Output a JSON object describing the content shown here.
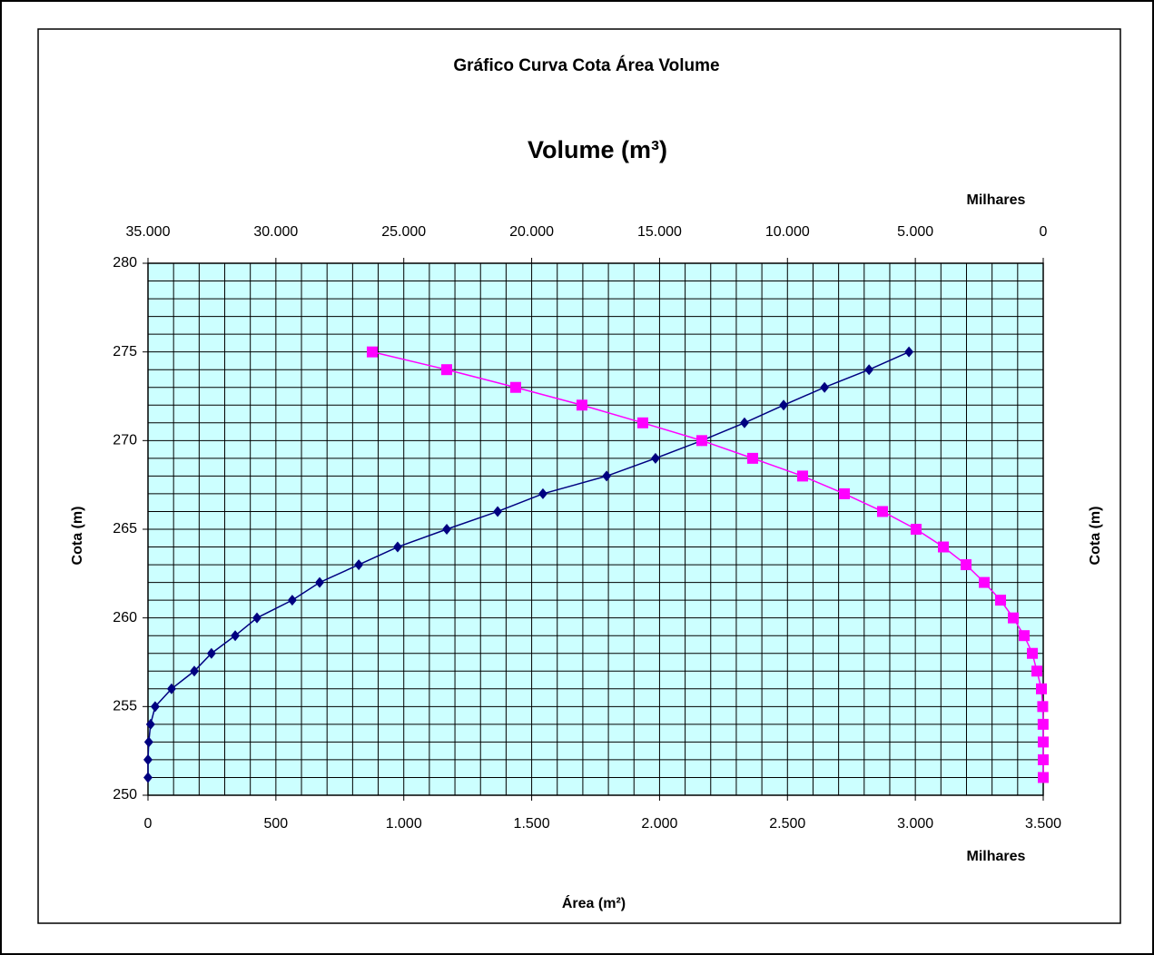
{
  "chart_data": {
    "type": "scatter",
    "connect": true,
    "title": "Gráfico Curva Cota Área Volume",
    "x2label": "Volume (m³)",
    "x2_units": "Milhares",
    "xlabel": "Área (m²)",
    "x_units": "Milhares",
    "ylabel": "Cota (m)",
    "y2label": "Cota (m)",
    "xlim": [
      0,
      3500
    ],
    "xticks": [
      0,
      500,
      {
        "value": 1000,
        "label": "1.000"
      },
      {
        "value": 1500,
        "label": "1.500"
      },
      {
        "value": 2000,
        "label": "2.000"
      },
      {
        "value": 2500,
        "label": "2.500"
      },
      {
        "value": 3000,
        "label": "3.000"
      },
      {
        "value": 3500,
        "label": "3.500"
      }
    ],
    "x2lim": [
      35000,
      0
    ],
    "x2ticks": [
      {
        "value": 35000,
        "label": "35.000"
      },
      {
        "value": 30000,
        "label": "30.000"
      },
      {
        "value": 25000,
        "label": "25.000"
      },
      {
        "value": 20000,
        "label": "20.000"
      },
      {
        "value": 15000,
        "label": "15.000"
      },
      {
        "value": 10000,
        "label": "10.000"
      },
      {
        "value": 5000,
        "label": "5.000"
      },
      0
    ],
    "ylim": [
      250,
      280
    ],
    "yticks": [
      250,
      255,
      260,
      265,
      270,
      275,
      280
    ],
    "grid": true,
    "minor_x_step": 100,
    "minor_y_step": 1,
    "background": "#ccffff",
    "series": [
      {
        "color": "#000080",
        "marker": "diamond",
        "axis": "x",
        "x": [
          0,
          0,
          3,
          10,
          28,
          92,
          181,
          248,
          341,
          426,
          564,
          671,
          824,
          976,
          1168,
          1367,
          1544,
          1793,
          1984,
          2165,
          2332,
          2485,
          2645,
          2819,
          2975
        ],
        "y": [
          251,
          252,
          253,
          254,
          255,
          256,
          257,
          258,
          259,
          260,
          261,
          262,
          263,
          264,
          265,
          266,
          267,
          268,
          269,
          270,
          271,
          272,
          273,
          274,
          275
        ]
      },
      {
        "color": "#ff00ff",
        "marker": "square",
        "axis": "x2",
        "x": [
          0,
          0,
          0,
          5,
          20,
          71,
          248,
          426,
          745,
          1171,
          1668,
          2307,
          3017,
          3905,
          4970,
          6283,
          7774,
          9407,
          11360,
          13348,
          15655,
          18034,
          20625,
          23322,
          26233
        ],
        "y": [
          251,
          252,
          253,
          254,
          255,
          256,
          257,
          258,
          259,
          260,
          261,
          262,
          263,
          264,
          265,
          266,
          267,
          268,
          269,
          270,
          271,
          272,
          273,
          274,
          275
        ]
      }
    ]
  }
}
